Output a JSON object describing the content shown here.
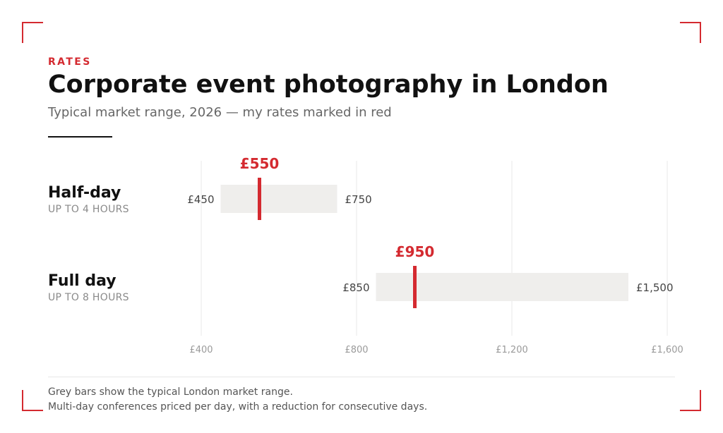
{
  "header": {
    "eyebrow": "RATES",
    "title": "Corporate event photography in London",
    "subtitle": "Typical market range, 2026 — my rates marked in red"
  },
  "rows": [
    {
      "label": "Half-day",
      "sublabel": "UP TO 4 HOURS"
    },
    {
      "label": "Full day",
      "sublabel": "UP TO 8 HOURS"
    }
  ],
  "chart_data": {
    "type": "range",
    "x_ticks": [
      400,
      800,
      1200,
      1600
    ],
    "x_tick_labels": [
      "£400",
      "£800",
      "£1,200",
      "£1,600"
    ],
    "xlim": [
      400,
      1600
    ],
    "grid": true,
    "series": [
      {
        "name": "Typical London market range",
        "color": "#efeeec"
      },
      {
        "name": "My rate",
        "color": "#d42a30"
      }
    ],
    "rows": [
      {
        "category": "Half-day",
        "range": [
          450,
          750
        ],
        "range_labels": [
          "£450",
          "£750"
        ],
        "marker": 550,
        "marker_label": "£550"
      },
      {
        "category": "Full day",
        "range": [
          850,
          1500
        ],
        "range_labels": [
          "£850",
          "£1,500"
        ],
        "marker": 950,
        "marker_label": "£950"
      }
    ]
  },
  "footer": {
    "line1": "Grey bars show the typical London market range.",
    "line2": "Multi-day conferences priced per day, with a reduction for consecutive days."
  },
  "colors": {
    "accent": "#d42a30",
    "range_bar": "#efeeec",
    "grid": "#e8e8e8",
    "text": "#111111",
    "muted": "#8a8a8a"
  }
}
